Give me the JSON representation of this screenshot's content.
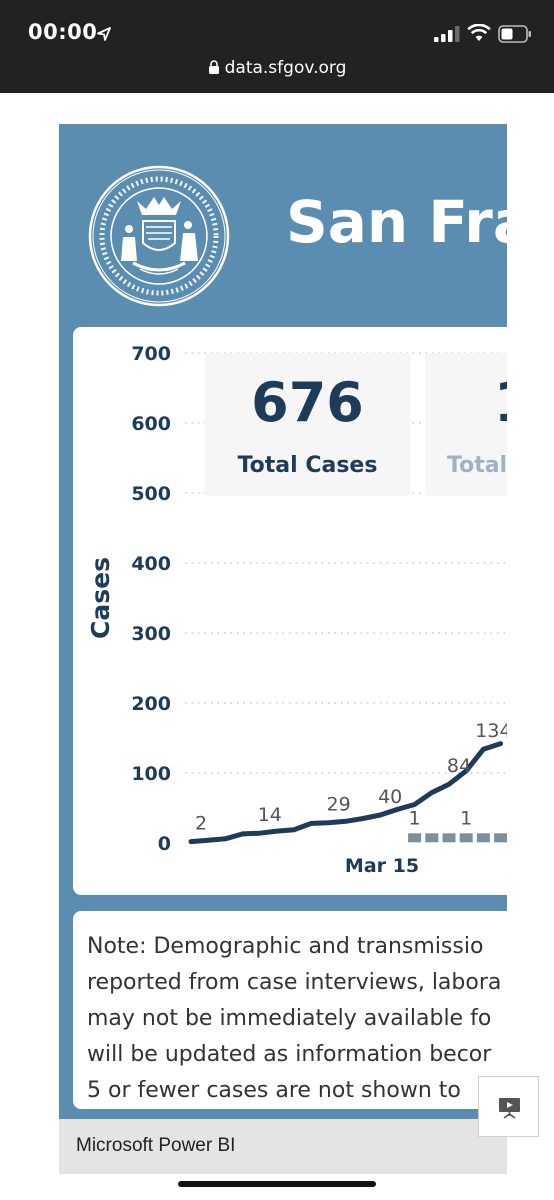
{
  "status_bar": {
    "time": "00:00",
    "url": "data.sfgov.org"
  },
  "report": {
    "title": "San Fran",
    "kpis": [
      {
        "value": "676",
        "label": "Total Cases"
      },
      {
        "value": "1",
        "label": "Total"
      }
    ],
    "note": "Note: Demographic and transmissio\nreported from case interviews, labora\nmay not be immediately available fo\nwill be updated as information becor\n5 or fewer cases are not shown to",
    "footer": "Microsoft Power BI"
  },
  "chart_data": {
    "type": "line",
    "ylabel": "Cases",
    "ylim": [
      0,
      700
    ],
    "y_ticks": [
      "0",
      "100",
      "200",
      "300",
      "400",
      "500",
      "600",
      "700"
    ],
    "x_tick_labels": [
      "Mar 15"
    ],
    "series": [
      {
        "points": [
          [
            0,
            2
          ],
          [
            1,
            4
          ],
          [
            2,
            6
          ],
          [
            3,
            13
          ],
          [
            4,
            14
          ],
          [
            5,
            17
          ],
          [
            6,
            19
          ],
          [
            7,
            28
          ],
          [
            8,
            29
          ],
          [
            9,
            31
          ],
          [
            10,
            35
          ],
          [
            11,
            40
          ],
          [
            12,
            48
          ],
          [
            13,
            55
          ],
          [
            14,
            72
          ],
          [
            15,
            84
          ],
          [
            16,
            103
          ],
          [
            17,
            134
          ],
          [
            18,
            142
          ]
        ]
      }
    ],
    "labels": [
      {
        "x": 0,
        "text": "2"
      },
      {
        "x": 4,
        "text": "14"
      },
      {
        "x": 8,
        "text": "29"
      },
      {
        "x": 11,
        "text": "40"
      },
      {
        "x": 15,
        "text": "84"
      },
      {
        "x": 17,
        "text": "134"
      }
    ],
    "bars": {
      "start_x": 13,
      "end_x": 18,
      "value": 1
    },
    "bar_labels": [
      {
        "x": 13,
        "text": "1"
      },
      {
        "x": 16,
        "text": "1"
      }
    ],
    "colors": {
      "line": "#1f3b5a",
      "bars": "#7f8e9b",
      "grid": "#cccccc",
      "label": "#555555"
    }
  }
}
